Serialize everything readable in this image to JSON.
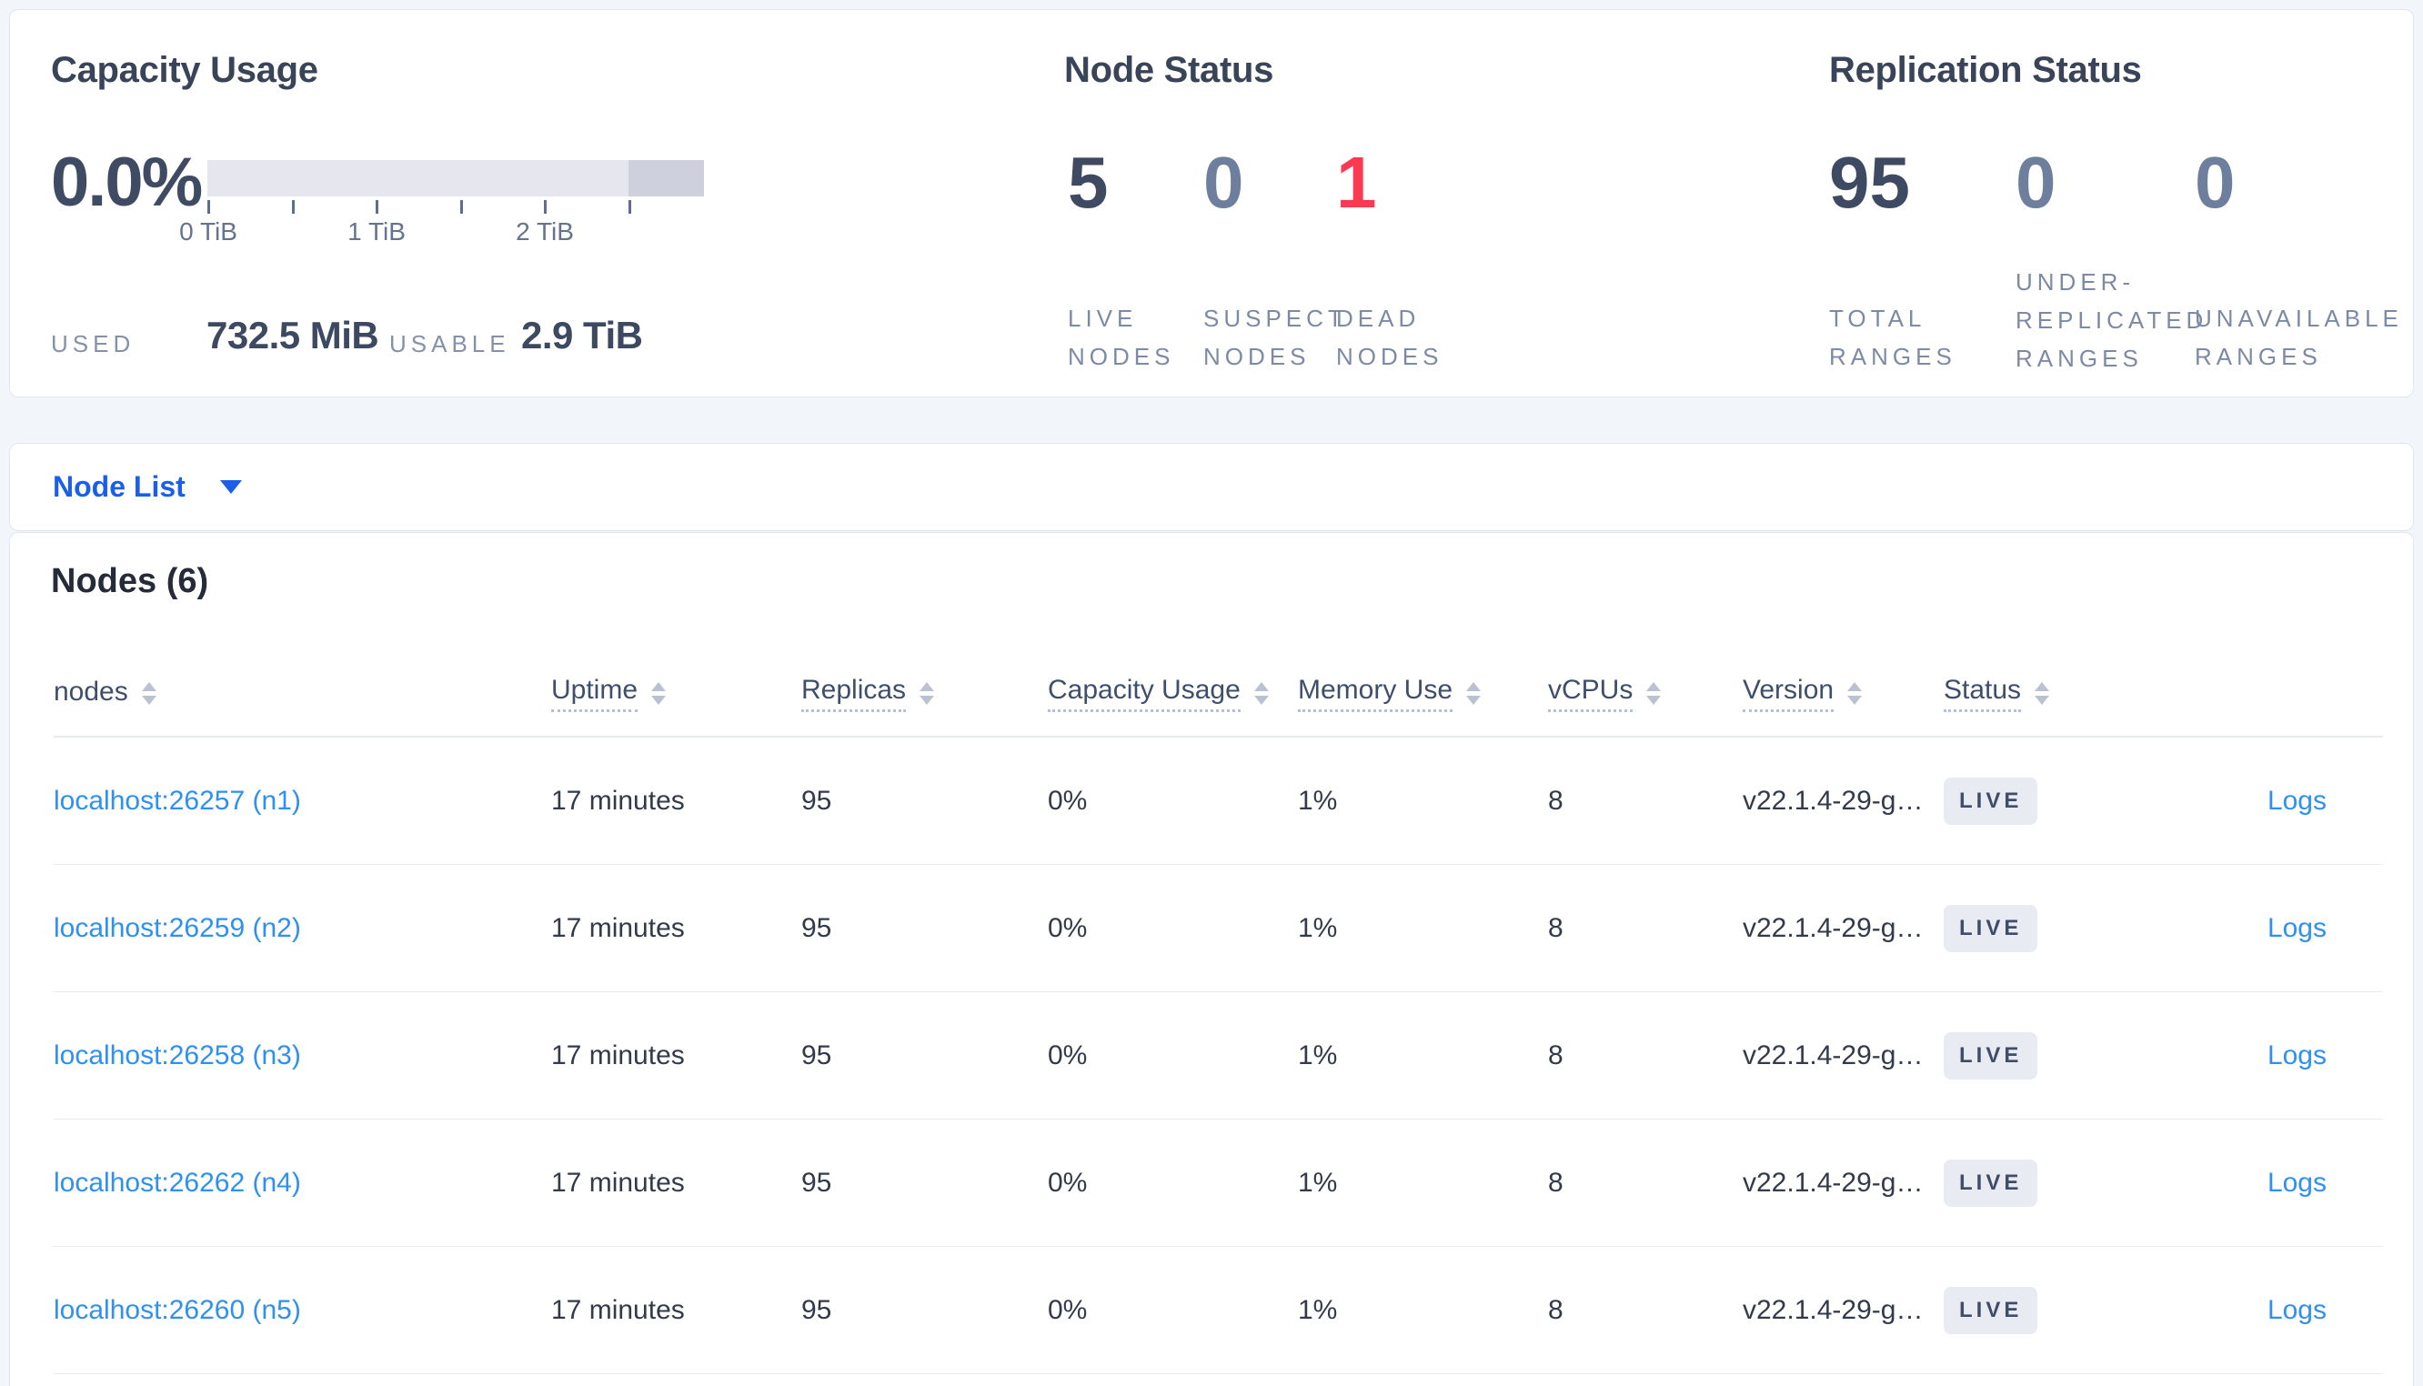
{
  "colors": {
    "page_bg": "#f2f5f9",
    "card_bg": "#ffffff",
    "nodelist_blue": "#1b5fe9",
    "link_blue": "#2e90f2",
    "dark_number": "#3d4a61",
    "muted_number": "#6e7e9d",
    "dead_red": "#fb3a52",
    "bar_light": "#e6e7ee",
    "bar_dark": "#ced1dd",
    "label_gray": "#7d8aa5",
    "badge_bg": "#e8ebf2",
    "badge_text": "#404d68"
  },
  "overview": {
    "capacity": {
      "title": "Capacity Usage",
      "percent": "0.0%",
      "tick_labels": [
        "0 TiB",
        "1 TiB",
        "2 TiB"
      ],
      "used_label": "USED",
      "used_value": "732.5 MiB",
      "usable_label": "USABLE",
      "usable_value": "2.9 TiB"
    },
    "node_status": {
      "title": "Node Status",
      "stats": [
        {
          "value": "5",
          "label_lines": [
            "LIVE",
            "NODES"
          ],
          "style": "dark"
        },
        {
          "value": "0",
          "label_lines": [
            "SUSPECT",
            "NODES"
          ],
          "style": "muted"
        },
        {
          "value": "1",
          "label_lines": [
            "DEAD",
            "NODES"
          ],
          "style": "red"
        }
      ]
    },
    "replication_status": {
      "title": "Replication Status",
      "stats": [
        {
          "value": "95",
          "label_lines": [
            "TOTAL",
            "RANGES"
          ],
          "style": "dark"
        },
        {
          "value": "0",
          "label_lines": [
            "UNDER-",
            "REPLICATED",
            "RANGES"
          ],
          "style": "muted"
        },
        {
          "value": "0",
          "label_lines": [
            "UNAVAILABLE",
            "RANGES"
          ],
          "style": "muted"
        }
      ]
    }
  },
  "node_list_bar": {
    "label": "Node List"
  },
  "nodes_section": {
    "title": "Nodes (6)",
    "columns": [
      {
        "label": "nodes"
      },
      {
        "label": "Uptime"
      },
      {
        "label": "Replicas"
      },
      {
        "label": "Capacity Usage"
      },
      {
        "label": "Memory Use"
      },
      {
        "label": "vCPUs"
      },
      {
        "label": "Version"
      },
      {
        "label": "Status"
      }
    ],
    "rows": [
      {
        "node": "localhost:26257 (n1)",
        "uptime": "17 minutes",
        "replicas": "95",
        "capacity_usage": "0%",
        "memory_use": "1%",
        "vcpus": "8",
        "version": "v22.1.4-29-g…",
        "status": "LIVE",
        "logs": "Logs"
      },
      {
        "node": "localhost:26259 (n2)",
        "uptime": "17 minutes",
        "replicas": "95",
        "capacity_usage": "0%",
        "memory_use": "1%",
        "vcpus": "8",
        "version": "v22.1.4-29-g…",
        "status": "LIVE",
        "logs": "Logs"
      },
      {
        "node": "localhost:26258 (n3)",
        "uptime": "17 minutes",
        "replicas": "95",
        "capacity_usage": "0%",
        "memory_use": "1%",
        "vcpus": "8",
        "version": "v22.1.4-29-g…",
        "status": "LIVE",
        "logs": "Logs"
      },
      {
        "node": "localhost:26262 (n4)",
        "uptime": "17 minutes",
        "replicas": "95",
        "capacity_usage": "0%",
        "memory_use": "1%",
        "vcpus": "8",
        "version": "v22.1.4-29-g…",
        "status": "LIVE",
        "logs": "Logs"
      },
      {
        "node": "localhost:26260 (n5)",
        "uptime": "17 minutes",
        "replicas": "95",
        "capacity_usage": "0%",
        "memory_use": "1%",
        "vcpus": "8",
        "version": "v22.1.4-29-g…",
        "status": "LIVE",
        "logs": "Logs"
      }
    ]
  }
}
